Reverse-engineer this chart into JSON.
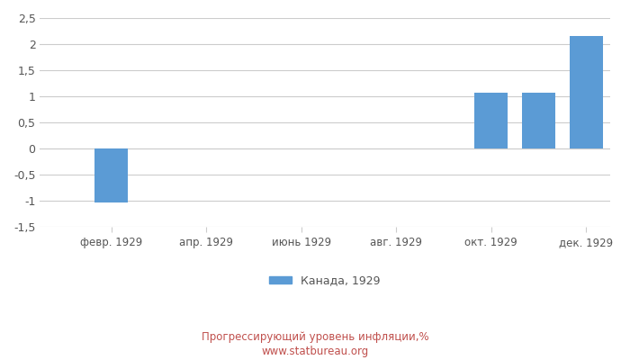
{
  "months": [
    1,
    2,
    3,
    4,
    5,
    6,
    7,
    8,
    9,
    10,
    11,
    12
  ],
  "bar_positions": [
    2,
    4,
    10,
    11,
    12
  ],
  "bar_values": [
    -1.03,
    0.0,
    1.07,
    1.07,
    2.16
  ],
  "xtick_positions": [
    2,
    4,
    6,
    8,
    10,
    12
  ],
  "xtick_labels": [
    "февр. 1929",
    "апр. 1929",
    "июнь 1929",
    "авг. 1929",
    "окт. 1929",
    "дек. 1929"
  ],
  "bar_color": "#5B9BD5",
  "ylim": [
    -1.5,
    2.5
  ],
  "yticks": [
    -1.5,
    -1.0,
    -0.5,
    0.0,
    0.5,
    1.0,
    1.5,
    2.0,
    2.5
  ],
  "ytick_labels": [
    "-1,5",
    "-1",
    "-0,5",
    "0",
    "0,5",
    "1",
    "1,5",
    "2",
    "2,5"
  ],
  "legend_label": "Канада, 1929",
  "footer_line1": "Прогрессирующий уровень инфляции,%",
  "footer_line2": "www.statbureau.org",
  "background_color": "#ffffff",
  "grid_color": "#cccccc",
  "text_color": "#555555",
  "footer_color": "#c0504d",
  "bar_width": 0.7
}
